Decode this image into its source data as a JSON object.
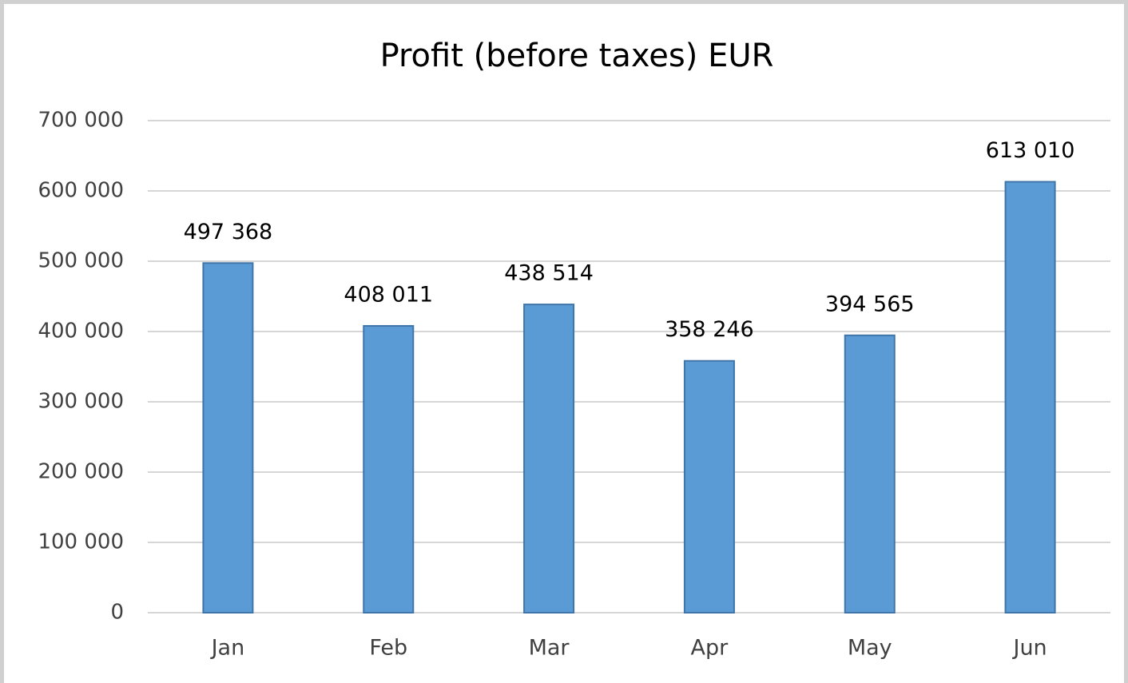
{
  "chart_data": {
    "type": "bar",
    "title": "Profit (before taxes) EUR",
    "categories": [
      "Jan",
      "Feb",
      "Mar",
      "Apr",
      "May",
      "Jun"
    ],
    "values": [
      497368,
      408011,
      438514,
      358246,
      394565,
      613010
    ],
    "value_labels": [
      "497 368",
      "408 011",
      "438 514",
      "358 246",
      "394 565",
      "613 010"
    ],
    "color": "#5b9bd5",
    "ylim": [
      0,
      700000
    ],
    "yticks": [
      0,
      {
        "value": 100000,
        "label": "100 000"
      },
      {
        "value": 200000,
        "label": "200 000"
      },
      {
        "value": 300000,
        "label": "300 000"
      },
      {
        "value": 400000,
        "label": "400 000"
      },
      {
        "value": 500000,
        "label": "500 000"
      },
      {
        "value": 600000,
        "label": "600 000"
      },
      {
        "value": 700000,
        "label": "700 000"
      }
    ],
    "grid": true
  }
}
